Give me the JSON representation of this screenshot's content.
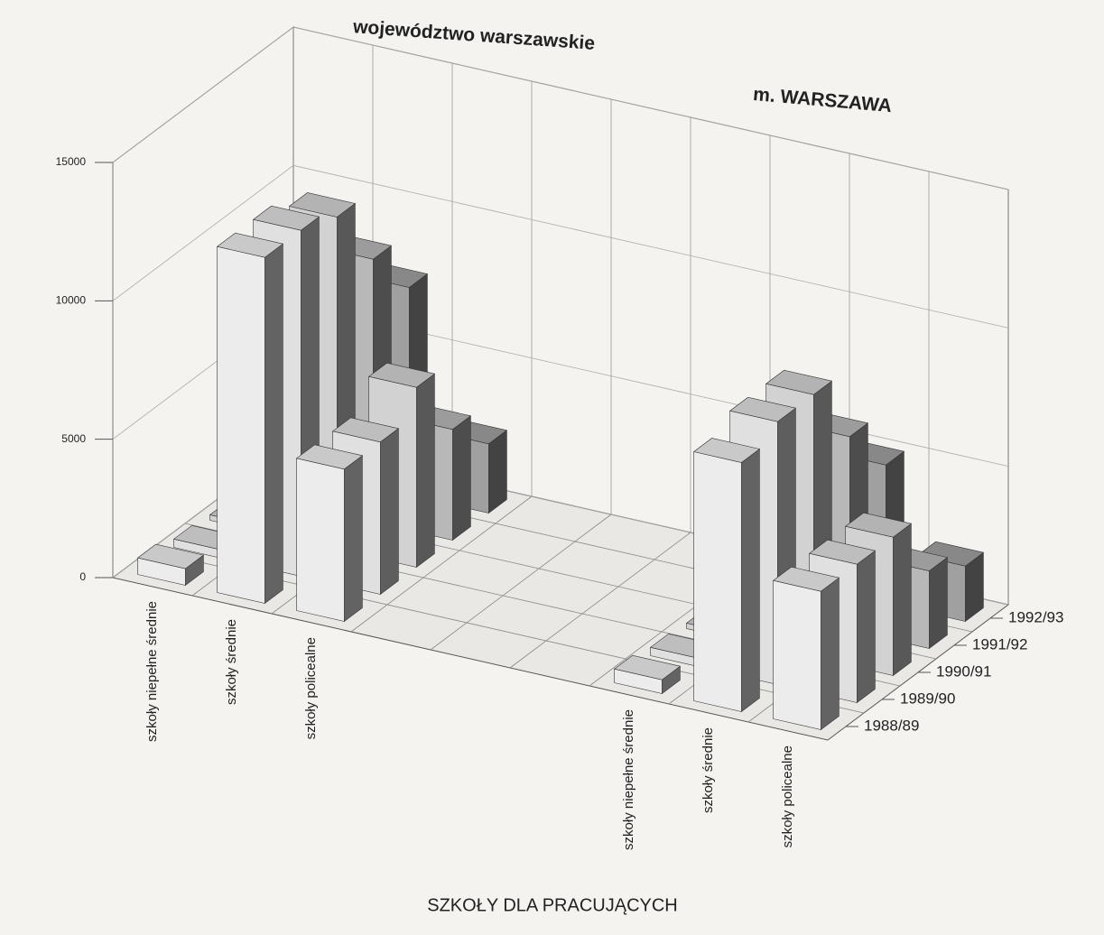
{
  "chart_data": {
    "type": "bar3d",
    "title": "SZKOŁY DLA PRACUJĄCYCH",
    "groups": [
      {
        "name": "województwo warszawskie",
        "categories": [
          "szkoły niepełne średnie",
          "szkoły średnie",
          "szkoły policealne"
        ]
      },
      {
        "name": "m. WARSZAWA",
        "categories": [
          "szkoły niepełne średnie",
          "szkoły średnie",
          "szkoły policealne"
        ]
      }
    ],
    "series": [
      {
        "name": "1988/89",
        "color": "#ececec",
        "values": [
          [
            600,
            12500,
            5500
          ],
          [
            500,
            9000,
            5000
          ]
        ]
      },
      {
        "name": "1989/90",
        "color": "#e0e0e0",
        "values": [
          [
            300,
            12500,
            5500
          ],
          [
            300,
            9500,
            5000
          ]
        ]
      },
      {
        "name": "1990/91",
        "color": "#d2d2d2",
        "values": [
          [
            200,
            12000,
            6500
          ],
          [
            200,
            9500,
            5000
          ]
        ]
      },
      {
        "name": "1991/92",
        "color": "#b8b8b8",
        "values": [
          [
            100,
            9500,
            4000
          ],
          [
            100,
            7000,
            2800
          ]
        ]
      },
      {
        "name": "1992/93",
        "color": "#a0a0a0",
        "values": [
          [
            100,
            7500,
            2500
          ],
          [
            100,
            5000,
            2000
          ]
        ]
      }
    ],
    "ylim": [
      0,
      15000
    ],
    "yticks": [
      0,
      5000,
      10000,
      15000
    ],
    "grid": true
  }
}
